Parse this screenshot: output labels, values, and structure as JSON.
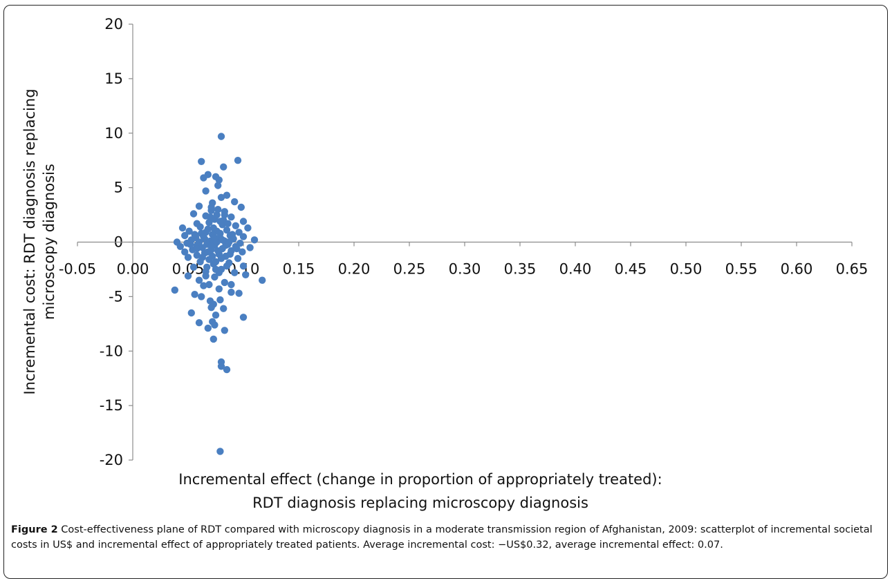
{
  "chart_data": {
    "type": "scatter",
    "title": "",
    "xlabel": [
      "Incremental effect (change in proportion of appropriately treated):",
      "RDT diagnosis replacing microscopy diagnosis"
    ],
    "ylabel": [
      "Incremental cost: RDT diagnosis replacing",
      "microscopy diagnosis"
    ],
    "xlim": [
      -0.05,
      0.65
    ],
    "ylim": [
      -20,
      20
    ],
    "x_ticks": [
      "-0.05",
      "0.00",
      "0.05",
      "0.10",
      "0.15",
      "0.20",
      "0.25",
      "0.30",
      "0.35",
      "0.40",
      "0.45",
      "0.50",
      "0.55",
      "0.60",
      "0.65"
    ],
    "y_ticks": [
      "20",
      "15",
      "10",
      "5",
      "0",
      "-5",
      "-10",
      "-15",
      "-20"
    ],
    "grid": false,
    "marker_color": "#4a7fc1",
    "series": [
      {
        "points": [
          [
            0.08,
            9.7
          ],
          [
            0.062,
            7.4
          ],
          [
            0.095,
            7.5
          ],
          [
            0.082,
            6.9
          ],
          [
            0.068,
            6.2
          ],
          [
            0.075,
            6.0
          ],
          [
            0.064,
            5.9
          ],
          [
            0.078,
            5.7
          ],
          [
            0.077,
            5.2
          ],
          [
            0.066,
            4.7
          ],
          [
            0.085,
            4.3
          ],
          [
            0.08,
            4.1
          ],
          [
            0.092,
            3.7
          ],
          [
            0.072,
            3.6
          ],
          [
            0.06,
            3.3
          ],
          [
            0.098,
            3.2
          ],
          [
            0.071,
            2.9
          ],
          [
            0.083,
            2.8
          ],
          [
            0.055,
            2.6
          ],
          [
            0.066,
            2.4
          ],
          [
            0.089,
            2.3
          ],
          [
            0.074,
            2.1
          ],
          [
            0.1,
            1.9
          ],
          [
            0.058,
            1.7
          ],
          [
            0.081,
            1.6
          ],
          [
            0.093,
            1.5
          ],
          [
            0.045,
            1.3
          ],
          [
            0.104,
            1.3
          ],
          [
            0.068,
            1.2
          ],
          [
            0.085,
            1.1
          ],
          [
            0.051,
            1.0
          ],
          [
            0.076,
            1.0
          ],
          [
            0.096,
            0.9
          ],
          [
            0.062,
            0.8
          ],
          [
            0.072,
            0.7
          ],
          [
            0.088,
            0.6
          ],
          [
            0.047,
            0.6
          ],
          [
            0.1,
            0.5
          ],
          [
            0.057,
            0.4
          ],
          [
            0.079,
            0.4
          ],
          [
            0.065,
            0.3
          ],
          [
            0.091,
            0.3
          ],
          [
            0.11,
            0.2
          ],
          [
            0.053,
            0.2
          ],
          [
            0.07,
            0.1
          ],
          [
            0.083,
            0.1
          ],
          [
            0.06,
            0.0
          ],
          [
            0.04,
            0.0
          ],
          [
            0.076,
            0.0
          ],
          [
            0.097,
            -0.1
          ],
          [
            0.049,
            -0.1
          ],
          [
            0.067,
            -0.2
          ],
          [
            0.086,
            -0.2
          ],
          [
            0.058,
            -0.3
          ],
          [
            0.074,
            -0.3
          ],
          [
            0.093,
            -0.4
          ],
          [
            0.043,
            -0.4
          ],
          [
            0.106,
            -0.5
          ],
          [
            0.063,
            -0.5
          ],
          [
            0.081,
            -0.6
          ],
          [
            0.054,
            -0.7
          ],
          [
            0.071,
            -0.7
          ],
          [
            0.089,
            -0.8
          ],
          [
            0.047,
            -0.9
          ],
          [
            0.099,
            -0.9
          ],
          [
            0.065,
            -1.0
          ],
          [
            0.078,
            -1.1
          ],
          [
            0.058,
            -1.2
          ],
          [
            0.084,
            -1.3
          ],
          [
            0.05,
            -1.4
          ],
          [
            0.095,
            -1.5
          ],
          [
            0.069,
            -1.6
          ],
          [
            0.061,
            -1.8
          ],
          [
            0.087,
            -1.9
          ],
          [
            0.073,
            -2.0
          ],
          [
            0.1,
            -2.2
          ],
          [
            0.055,
            -2.3
          ],
          [
            0.08,
            -2.5
          ],
          [
            0.066,
            -2.7
          ],
          [
            0.092,
            -2.8
          ],
          [
            0.102,
            -3.0
          ],
          [
            0.05,
            -3.1
          ],
          [
            0.074,
            -3.2
          ],
          [
            0.06,
            -3.5
          ],
          [
            0.117,
            -3.5
          ],
          [
            0.083,
            -3.7
          ],
          [
            0.069,
            -3.9
          ],
          [
            0.089,
            -3.9
          ],
          [
            0.064,
            -4.0
          ],
          [
            0.078,
            -4.3
          ],
          [
            0.038,
            -4.4
          ],
          [
            0.089,
            -4.6
          ],
          [
            0.096,
            -4.7
          ],
          [
            0.056,
            -4.8
          ],
          [
            0.062,
            -5.0
          ],
          [
            0.079,
            -5.3
          ],
          [
            0.07,
            -5.4
          ],
          [
            0.073,
            -5.7
          ],
          [
            0.071,
            -6.0
          ],
          [
            0.082,
            -6.1
          ],
          [
            0.053,
            -6.5
          ],
          [
            0.075,
            -6.7
          ],
          [
            0.1,
            -6.9
          ],
          [
            0.072,
            -7.3
          ],
          [
            0.06,
            -7.4
          ],
          [
            0.074,
            -7.6
          ],
          [
            0.068,
            -7.9
          ],
          [
            0.083,
            -8.1
          ],
          [
            0.073,
            -8.9
          ],
          [
            0.08,
            -11.0
          ],
          [
            0.08,
            -11.4
          ],
          [
            0.085,
            -11.7
          ],
          [
            0.079,
            -19.2
          ],
          [
            0.056,
            0.7
          ],
          [
            0.058,
            -0.6
          ],
          [
            0.061,
            1.4
          ],
          [
            0.063,
            -1.4
          ],
          [
            0.066,
            0.9
          ],
          [
            0.068,
            -0.9
          ],
          [
            0.069,
            1.8
          ],
          [
            0.071,
            -0.4
          ],
          [
            0.073,
            1.3
          ],
          [
            0.075,
            -1.8
          ],
          [
            0.076,
            2.5
          ],
          [
            0.077,
            -0.8
          ],
          [
            0.079,
            0.8
          ],
          [
            0.08,
            -1.5
          ],
          [
            0.082,
            2.0
          ],
          [
            0.084,
            -0.3
          ],
          [
            0.086,
            1.7
          ],
          [
            0.088,
            -1.1
          ],
          [
            0.09,
            0.7
          ],
          [
            0.094,
            -0.6
          ],
          [
            0.052,
            -0.2
          ],
          [
            0.064,
            0.5
          ],
          [
            0.067,
            -2.3
          ],
          [
            0.07,
            2.3
          ],
          [
            0.072,
            -1.3
          ],
          [
            0.074,
            0.4
          ],
          [
            0.077,
            3.0
          ],
          [
            0.078,
            -2.8
          ],
          [
            0.081,
            0.2
          ],
          [
            0.083,
            2.5
          ],
          [
            0.085,
            -2.2
          ],
          [
            0.087,
            0.0
          ],
          [
            0.066,
            -3.1
          ],
          [
            0.071,
            3.2
          ],
          [
            0.075,
            -2.5
          ],
          [
            0.079,
            1.9
          ]
        ]
      }
    ]
  },
  "caption": {
    "label": "Figure 2",
    "text": " Cost-effectiveness plane of RDT compared with microscopy diagnosis in a moderate transmission region of Afghanistan, 2009: scatterplot of incremental societal costs in US$ and incremental effect of appropriately treated patients. Average incremental cost: −US$0.32, average incremental effect: 0.07."
  }
}
